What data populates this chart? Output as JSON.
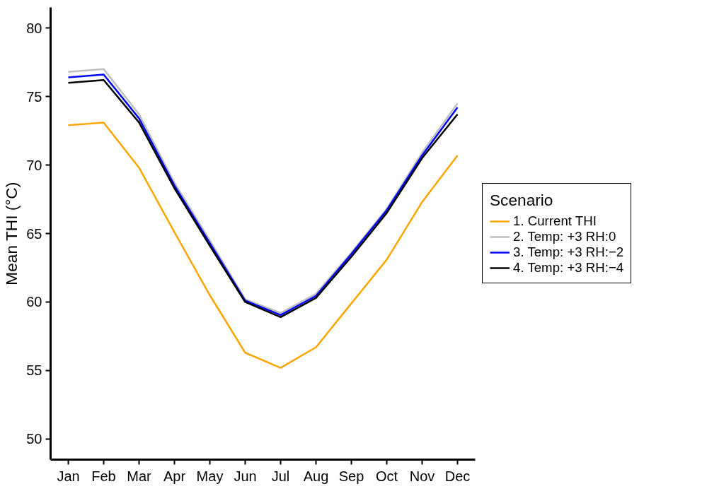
{
  "chart_data": {
    "type": "line",
    "ylabel": "Mean THI (°C)",
    "legend_title": "Scenario",
    "legend": "right",
    "grid": false,
    "categories": [
      "Jan",
      "Feb",
      "Mar",
      "Apr",
      "May",
      "Jun",
      "Jul",
      "Aug",
      "Sep",
      "Oct",
      "Nov",
      "Dec"
    ],
    "ylim": [
      48.5,
      81.5
    ],
    "yticks": [
      50,
      55,
      60,
      65,
      70,
      75,
      80
    ],
    "series": [
      {
        "name": "1. Current THI",
        "color": "#ffa500",
        "values": [
          72.9,
          73.1,
          69.8,
          65.1,
          60.5,
          56.3,
          55.2,
          56.7,
          59.9,
          63.1,
          67.3,
          70.7
        ]
      },
      {
        "name": "2. Temp: +3 RH:0",
        "color": "#bebebe",
        "values": [
          76.8,
          77.0,
          73.7,
          68.7,
          64.5,
          60.2,
          59.2,
          60.6,
          63.6,
          66.8,
          70.9,
          74.5
        ]
      },
      {
        "name": "3. Temp: +3 RH:−2",
        "color": "#0000ff",
        "values": [
          76.4,
          76.6,
          73.4,
          68.5,
          64.3,
          60.1,
          59.05,
          60.45,
          63.5,
          66.7,
          70.7,
          74.2
        ]
      },
      {
        "name": "4. Temp: +3 RH:−4",
        "color": "#000000",
        "values": [
          76.0,
          76.2,
          73.1,
          68.3,
          64.1,
          60.0,
          58.9,
          60.3,
          63.3,
          66.5,
          70.5,
          73.7
        ]
      }
    ]
  }
}
